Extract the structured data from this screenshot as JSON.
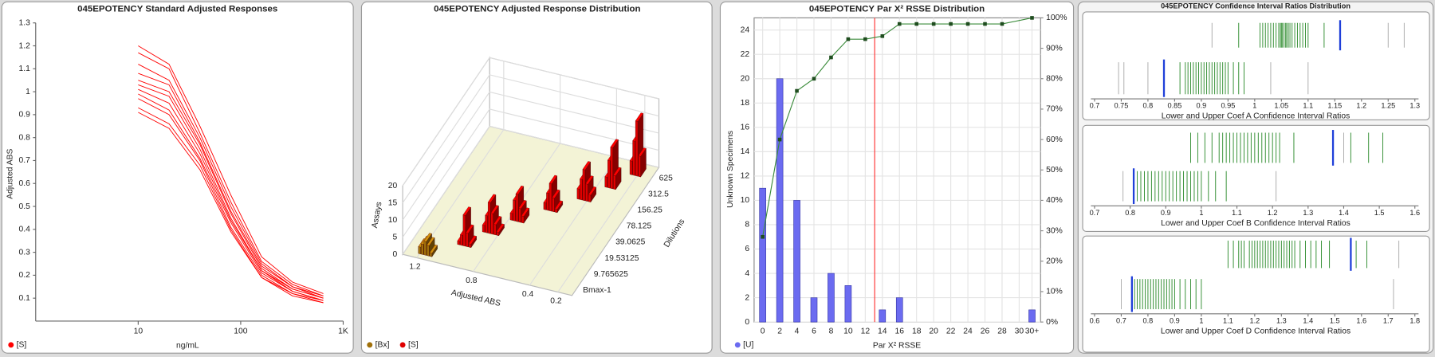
{
  "chart_data": [
    {
      "type": "line",
      "title": "045EPOTENCY Standard Adjusted Responses",
      "xlabel": "ng/mL",
      "ylabel": "Adjusted ABS",
      "log_x": true,
      "x": [
        10,
        20,
        40,
        80,
        160,
        320,
        640
      ],
      "series": [
        {
          "name": "[S]",
          "color": "#ff0000",
          "curves": [
            [
              1.2,
              1.12,
              0.85,
              0.55,
              0.28,
              0.17,
              0.12
            ],
            [
              1.17,
              1.1,
              0.82,
              0.52,
              0.26,
              0.16,
              0.11
            ],
            [
              1.12,
              1.05,
              0.8,
              0.5,
              0.25,
              0.15,
              0.11
            ],
            [
              1.08,
              1.03,
              0.78,
              0.48,
              0.24,
              0.15,
              0.1
            ],
            [
              1.05,
              1.0,
              0.77,
              0.47,
              0.23,
              0.14,
              0.1
            ],
            [
              1.03,
              0.98,
              0.75,
              0.45,
              0.22,
              0.14,
              0.1
            ],
            [
              1.01,
              0.95,
              0.73,
              0.44,
              0.22,
              0.13,
              0.09
            ],
            [
              0.99,
              0.92,
              0.71,
              0.43,
              0.21,
              0.13,
              0.09
            ],
            [
              0.97,
              0.9,
              0.7,
              0.41,
              0.2,
              0.12,
              0.09
            ],
            [
              0.93,
              0.86,
              0.68,
              0.4,
              0.19,
              0.12,
              0.08
            ],
            [
              0.91,
              0.84,
              0.66,
              0.39,
              0.19,
              0.11,
              0.08
            ]
          ]
        }
      ],
      "xlim": [
        1,
        1000
      ],
      "xticks": [
        10,
        100,
        {
          "value": 1000,
          "label": "1K"
        }
      ],
      "ylim": [
        0,
        1.3
      ],
      "yticks": [
        0.1,
        0.2,
        0.3,
        0.4,
        0.5,
        0.6,
        0.7,
        0.8,
        0.9,
        1,
        1.1,
        1.2,
        1.3
      ]
    },
    {
      "type": "bar3d",
      "title": "045EPOTENCY Adjusted Response Distribution",
      "xlabel": "Adjusted ABS",
      "ylabel": "Dilutions",
      "zlabel": "Assays",
      "dilutions": [
        "Bmax-1",
        "9.765625",
        "19.53125",
        "39.0625",
        "78.125",
        "156.25",
        "312.5",
        "625"
      ],
      "xlim": [
        1.3,
        0.1
      ],
      "xticks": [
        1.2,
        0.8,
        0.4,
        0.2
      ],
      "zlim": [
        0,
        20
      ],
      "zticks": [
        0,
        5,
        10,
        15,
        20
      ],
      "series": [
        {
          "name": "[Bx]",
          "color": "#a0700a",
          "dilution": [
            "Bmax-1",
            "Bmax-1",
            "Bmax-1",
            "Bmax-1",
            "Bmax-1"
          ],
          "abs": [
            1.2,
            1.18,
            1.16,
            1.14,
            1.12
          ],
          "values": [
            2,
            3,
            4,
            3,
            1
          ]
        },
        {
          "name": "[S]",
          "color": "#e00000",
          "dilution": [
            "9.765625",
            "9.765625",
            "9.765625",
            "9.765625",
            "9.765625",
            "19.53125",
            "19.53125",
            "19.53125",
            "19.53125",
            "19.53125",
            "19.53125",
            "39.0625",
            "39.0625",
            "39.0625",
            "39.0625",
            "39.0625",
            "78.125",
            "78.125",
            "78.125",
            "78.125",
            "78.125",
            "156.25",
            "156.25",
            "156.25",
            "156.25",
            "156.25",
            "312.5",
            "312.5",
            "312.5",
            "312.5",
            "625",
            "625",
            "625",
            "625"
          ],
          "abs": [
            1.0,
            0.98,
            0.96,
            0.94,
            0.92,
            0.9,
            0.88,
            0.86,
            0.84,
            0.82,
            0.8,
            0.78,
            0.76,
            0.74,
            0.72,
            0.7,
            0.62,
            0.6,
            0.58,
            0.56,
            0.54,
            0.46,
            0.44,
            0.42,
            0.4,
            0.38,
            0.34,
            0.32,
            0.3,
            0.28,
            0.24,
            0.22,
            0.2,
            0.18
          ],
          "values": [
            1,
            3,
            9,
            4,
            1,
            2,
            5,
            9,
            6,
            3,
            1,
            2,
            6,
            8,
            4,
            2,
            2,
            5,
            8,
            4,
            1,
            3,
            6,
            9,
            5,
            2,
            3,
            8,
            12,
            4,
            4,
            10,
            16,
            6
          ]
        }
      ]
    },
    {
      "type": "bar_line",
      "title": "045EPOTENCY Par X² RSSE Distribution",
      "xlabel": "Par X² RSSE",
      "ylabel": "Unknown Specimens",
      "x": [
        0,
        2,
        4,
        6,
        8,
        10,
        12,
        14,
        16,
        18,
        20,
        22,
        24,
        26,
        28,
        31.5
      ],
      "series": [
        {
          "name": "[U]",
          "color": "#6b6bf0",
          "values": [
            11,
            20,
            10,
            2,
            4,
            3,
            0,
            1,
            2,
            0,
            0,
            0,
            0,
            0,
            0,
            1
          ]
        },
        {
          "color": "#3c8c3c",
          "axis": "y2",
          "values": [
            28,
            60,
            76,
            80,
            87,
            93,
            93,
            94,
            98,
            98,
            98,
            98,
            98,
            98,
            98,
            100
          ]
        }
      ],
      "reference_line": 13.1,
      "reference_color": "#ff3333",
      "xlim": [
        -1,
        32.5
      ],
      "xticks": [
        0,
        2,
        4,
        6,
        8,
        10,
        12,
        14,
        16,
        18,
        20,
        22,
        24,
        26,
        28,
        30,
        {
          "value": 31.5,
          "label": "30+"
        }
      ],
      "ylim": [
        0,
        25
      ],
      "yticks": [
        0,
        2,
        4,
        6,
        8,
        10,
        12,
        14,
        16,
        18,
        20,
        22,
        24
      ],
      "y2lim": [
        0,
        100
      ],
      "y2ticks": [
        {
          "value": 0,
          "label": "0%"
        },
        {
          "value": 10,
          "label": "10%"
        },
        {
          "value": 20,
          "label": "20%"
        },
        {
          "value": 30,
          "label": "30%"
        },
        {
          "value": 40,
          "label": "40%"
        },
        {
          "value": 50,
          "label": "50%"
        },
        {
          "value": 60,
          "label": "60%"
        },
        {
          "value": 70,
          "label": "70%"
        },
        {
          "value": 80,
          "label": "80%"
        },
        {
          "value": 90,
          "label": "90%"
        },
        {
          "value": 100,
          "label": "100%"
        }
      ],
      "grid": true
    },
    {
      "type": "strips",
      "title": "045EPOTENCY Confidence Interval Ratios Distribution",
      "colors": {
        "main": "#2a8a2a",
        "outlier": "#a8a8a8",
        "marker": "#1f3fd9"
      },
      "panels": [
        {
          "xlabel": "Lower and Upper Coef A Confidence Interval Ratios",
          "xlim": [
            0.7,
            1.3
          ],
          "xticks": [
            0.7,
            0.75,
            0.8,
            0.85,
            0.9,
            0.95,
            1,
            1.05,
            1.1,
            1.15,
            1.2,
            1.25,
            1.3
          ],
          "rows": [
            {
              "values": [
                0.97,
                1.01,
                1.015,
                1.02,
                1.025,
                1.03,
                1.035,
                1.04,
                1.045,
                1.048,
                1.05,
                1.052,
                1.055,
                1.058,
                1.06,
                1.063,
                1.066,
                1.07,
                1.075,
                1.08,
                1.085,
                1.09,
                1.095,
                1.1,
                1.13
              ],
              "outliers": [
                0.92,
                1.25,
                1.28
              ],
              "marker": 1.16
            },
            {
              "values": [
                0.86,
                0.87,
                0.875,
                0.88,
                0.885,
                0.89,
                0.895,
                0.9,
                0.905,
                0.91,
                0.915,
                0.92,
                0.925,
                0.93,
                0.935,
                0.94,
                0.945,
                0.95,
                0.96,
                0.97,
                0.98
              ],
              "outliers": [
                0.745,
                0.755,
                0.8,
                1.03,
                1.1
              ],
              "marker": 0.83
            }
          ]
        },
        {
          "xlabel": "Lower and Upper Coef B Confidence Interval Ratios",
          "xlim": [
            0.7,
            1.6
          ],
          "xticks": [
            0.7,
            0.8,
            0.9,
            1,
            1.1,
            1.2,
            1.3,
            1.4,
            1.5,
            1.6
          ],
          "rows": [
            {
              "values": [
                0.97,
                0.99,
                1.01,
                1.03,
                1.05,
                1.06,
                1.07,
                1.08,
                1.09,
                1.1,
                1.11,
                1.12,
                1.13,
                1.14,
                1.15,
                1.16,
                1.17,
                1.18,
                1.19,
                1.2,
                1.21,
                1.22,
                1.26,
                1.42,
                1.47,
                1.51
              ],
              "outliers": [
                1.4
              ],
              "marker": 1.37
            },
            {
              "values": [
                0.82,
                0.83,
                0.84,
                0.85,
                0.86,
                0.87,
                0.88,
                0.89,
                0.9,
                0.91,
                0.92,
                0.93,
                0.94,
                0.95,
                0.96,
                0.97,
                0.98,
                0.99,
                1.0,
                1.02,
                1.04,
                1.07
              ],
              "outliers": [
                0.78,
                1.21
              ],
              "marker": 0.81
            }
          ]
        },
        {
          "xlabel": "Lower and Upper Coef D Confidence Interval Ratios",
          "xlim": [
            0.6,
            1.8
          ],
          "xticks": [
            0.6,
            0.7,
            0.8,
            0.9,
            1,
            1.1,
            1.2,
            1.3,
            1.4,
            1.5,
            1.6,
            1.7,
            1.8
          ],
          "rows": [
            {
              "values": [
                1.1,
                1.12,
                1.14,
                1.15,
                1.16,
                1.18,
                1.19,
                1.2,
                1.21,
                1.22,
                1.23,
                1.24,
                1.25,
                1.26,
                1.27,
                1.28,
                1.29,
                1.3,
                1.31,
                1.32,
                1.33,
                1.34,
                1.35,
                1.37,
                1.39,
                1.41,
                1.43,
                1.45,
                1.48,
                1.58,
                1.62
              ],
              "outliers": [
                1.74
              ],
              "marker": 1.56
            },
            {
              "values": [
                0.75,
                0.76,
                0.77,
                0.78,
                0.79,
                0.8,
                0.81,
                0.82,
                0.83,
                0.84,
                0.85,
                0.86,
                0.87,
                0.88,
                0.89,
                0.9,
                0.92,
                0.94,
                0.96,
                0.98,
                1.0
              ],
              "outliers": [
                0.7,
                1.72
              ],
              "marker": 0.74
            }
          ]
        }
      ]
    }
  ]
}
